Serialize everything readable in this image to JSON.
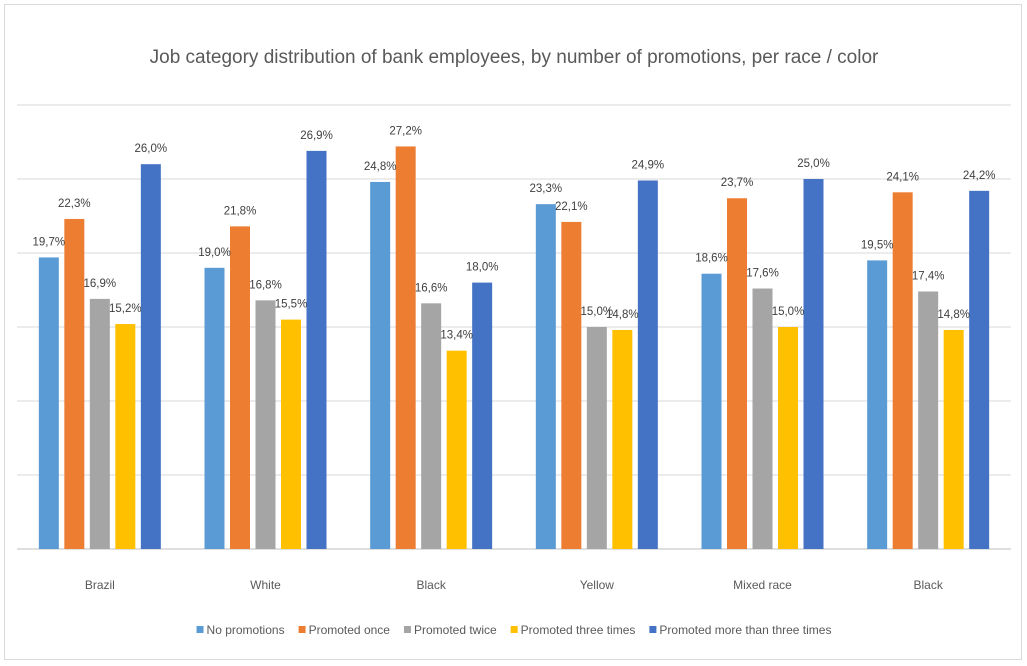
{
  "chart_data": {
    "type": "bar",
    "title": "Job category distribution of bank employees, by number of promotions, per race / color",
    "xlabel": "",
    "ylabel": "",
    "ylim": [
      0,
      30
    ],
    "grid": true,
    "legend_position": "bottom",
    "categories": [
      "Brazil",
      "White",
      "Black",
      "Yellow",
      "Mixed race",
      "Black"
    ],
    "series": [
      {
        "name": "No promotions",
        "color": "#5b9bd5",
        "values": [
          19.7,
          19.0,
          24.8,
          23.3,
          18.6,
          19.5
        ],
        "labels": [
          "19,7%",
          "19,0%",
          "24,8%",
          "23,3%",
          "18,6%",
          "19,5%"
        ]
      },
      {
        "name": "Promoted once",
        "color": "#ed7d31",
        "values": [
          22.3,
          21.8,
          27.2,
          22.1,
          23.7,
          24.1
        ],
        "labels": [
          "22,3%",
          "21,8%",
          "27,2%",
          "22,1%",
          "23,7%",
          "24,1%"
        ]
      },
      {
        "name": "Promoted twice",
        "color": "#a5a5a5",
        "values": [
          16.9,
          16.8,
          16.6,
          15.0,
          17.6,
          17.4
        ],
        "labels": [
          "16,9%",
          "16,8%",
          "16,6%",
          "15,0%",
          "17,6%",
          "17,4%"
        ]
      },
      {
        "name": "Promoted three times",
        "color": "#ffc000",
        "values": [
          15.2,
          15.5,
          13.4,
          14.8,
          15.0,
          14.8
        ],
        "labels": [
          "15,2%",
          "15,5%",
          "13,4%",
          "14,8%",
          "15,0%",
          "14,8%"
        ]
      },
      {
        "name": "Promoted more than three times",
        "color": "#4472c4",
        "values": [
          26.0,
          26.9,
          18.0,
          24.9,
          25.0,
          24.2
        ],
        "labels": [
          "26,0%",
          "26,9%",
          "18,0%",
          "24,9%",
          "25,0%",
          "24,2%"
        ]
      }
    ]
  }
}
